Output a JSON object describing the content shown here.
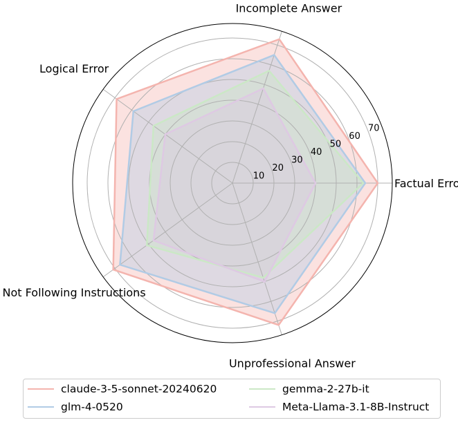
{
  "chart_data": {
    "type": "radar",
    "categories": [
      "Factual Error",
      "Incomplete Answer",
      "Logical Error",
      "Not Following Instructions",
      "Unprofessional Answer"
    ],
    "rlim": [
      0,
      77
    ],
    "rticks": [
      10,
      20,
      30,
      40,
      50,
      60,
      70
    ],
    "grid": true,
    "legend_position": "bottom",
    "series": [
      {
        "name": "claude-3-5-sonnet-20240620",
        "color": "#f4b4ae",
        "fill": "#fde0de",
        "values": [
          70,
          73,
          69,
          71,
          72
        ]
      },
      {
        "name": "glm-4-0520",
        "color": "#b1cbe5",
        "fill": "#dfe8f3",
        "values": [
          64,
          65,
          59,
          67,
          66
        ]
      },
      {
        "name": "gemma-2-27b-it",
        "color": "#cbe8c6",
        "fill": "#e4f1e2",
        "values": [
          63,
          57,
          47,
          51,
          48
        ]
      },
      {
        "name": "Meta-Llama-3.1-8B-Instruct",
        "color": "#dec9e3",
        "fill": "#ebdff0",
        "values": [
          40,
          48,
          40,
          47,
          50
        ]
      }
    ]
  }
}
